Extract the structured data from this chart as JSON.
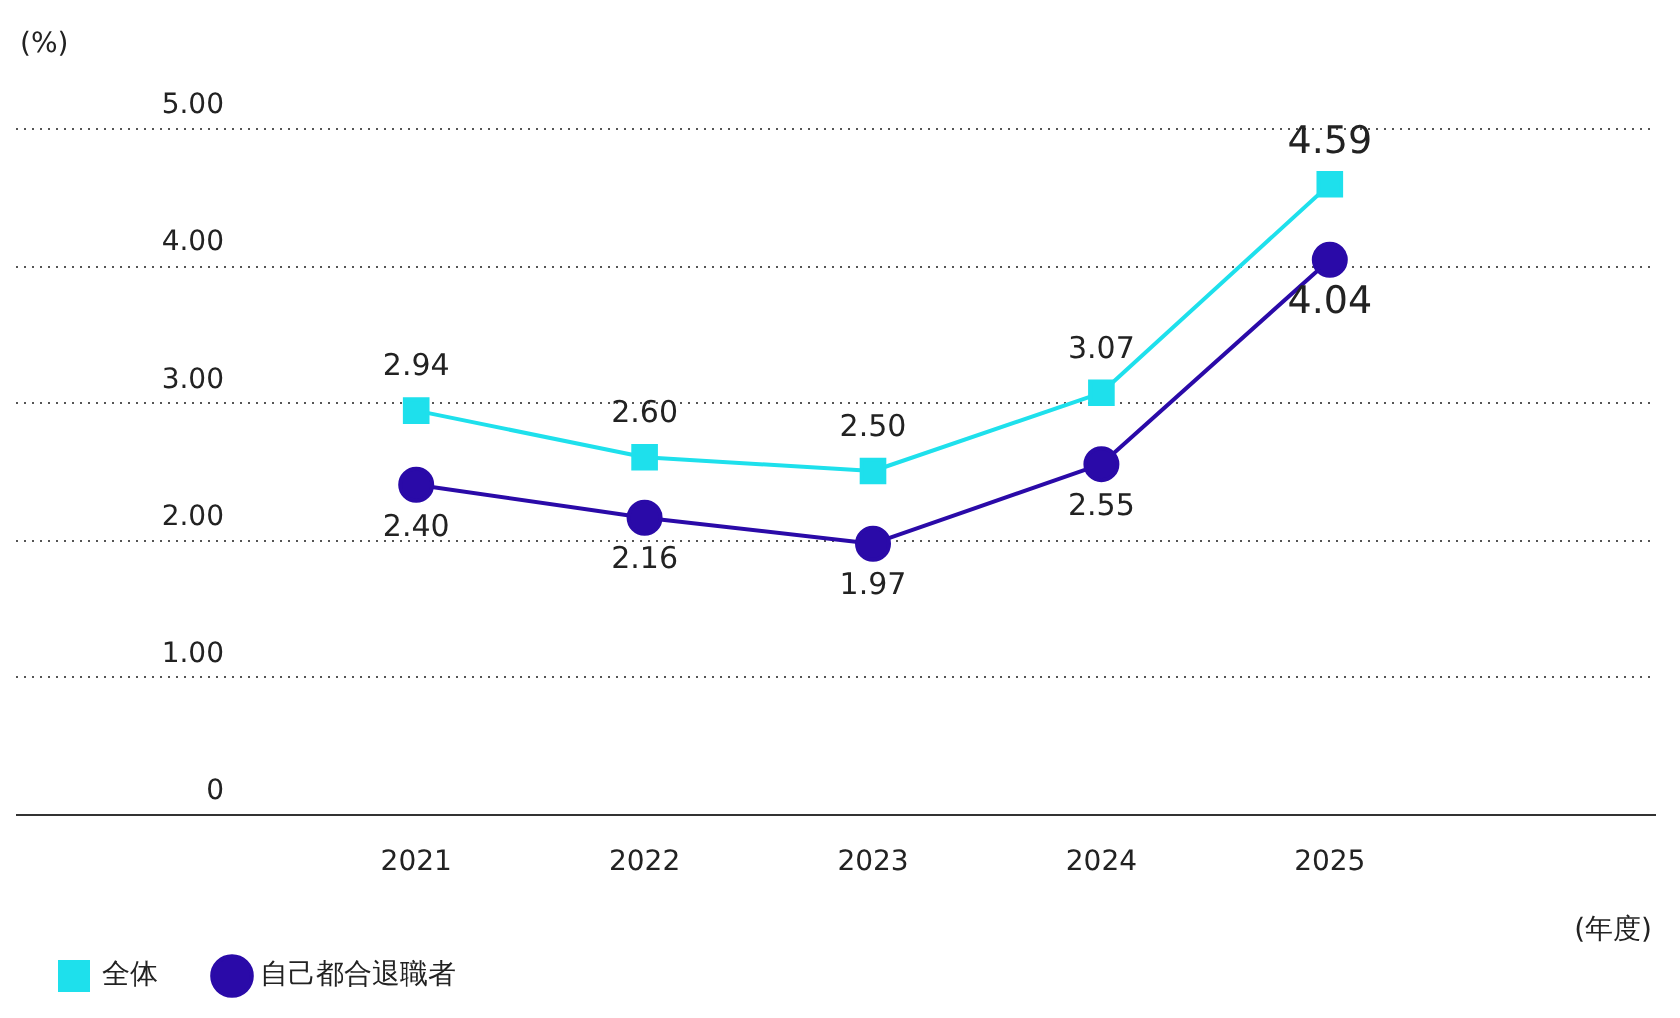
{
  "chart_data": {
    "type": "line",
    "ylabel": "(%)",
    "xlabel": "(年度)",
    "categories": [
      "2021",
      "2022",
      "2023",
      "2024",
      "2025"
    ],
    "series": [
      {
        "name": "全体",
        "color": "#1ee0ec",
        "marker": "square",
        "values": [
          2.94,
          2.6,
          2.5,
          3.07,
          4.59
        ],
        "value_labels": [
          "2.94",
          "2.60",
          "2.50",
          "3.07",
          "4.59"
        ]
      },
      {
        "name": "自己都合退職者",
        "color": "#2a0aa8",
        "marker": "circle",
        "values": [
          2.4,
          2.16,
          1.97,
          2.55,
          4.04
        ],
        "value_labels": [
          "2.40",
          "2.16",
          "1.97",
          "2.55",
          "4.04"
        ]
      }
    ],
    "ylim": [
      0,
      5
    ],
    "yticks": [
      0,
      {
        "value": 1,
        "label": "1.00"
      },
      {
        "value": 2,
        "label": "2.00"
      },
      {
        "value": 3,
        "label": "3.00"
      },
      {
        "value": 4,
        "label": "4.00"
      },
      {
        "value": 5,
        "label": "5.00"
      }
    ],
    "grid": "y",
    "legend": "bottom left",
    "line_style": "solid"
  }
}
